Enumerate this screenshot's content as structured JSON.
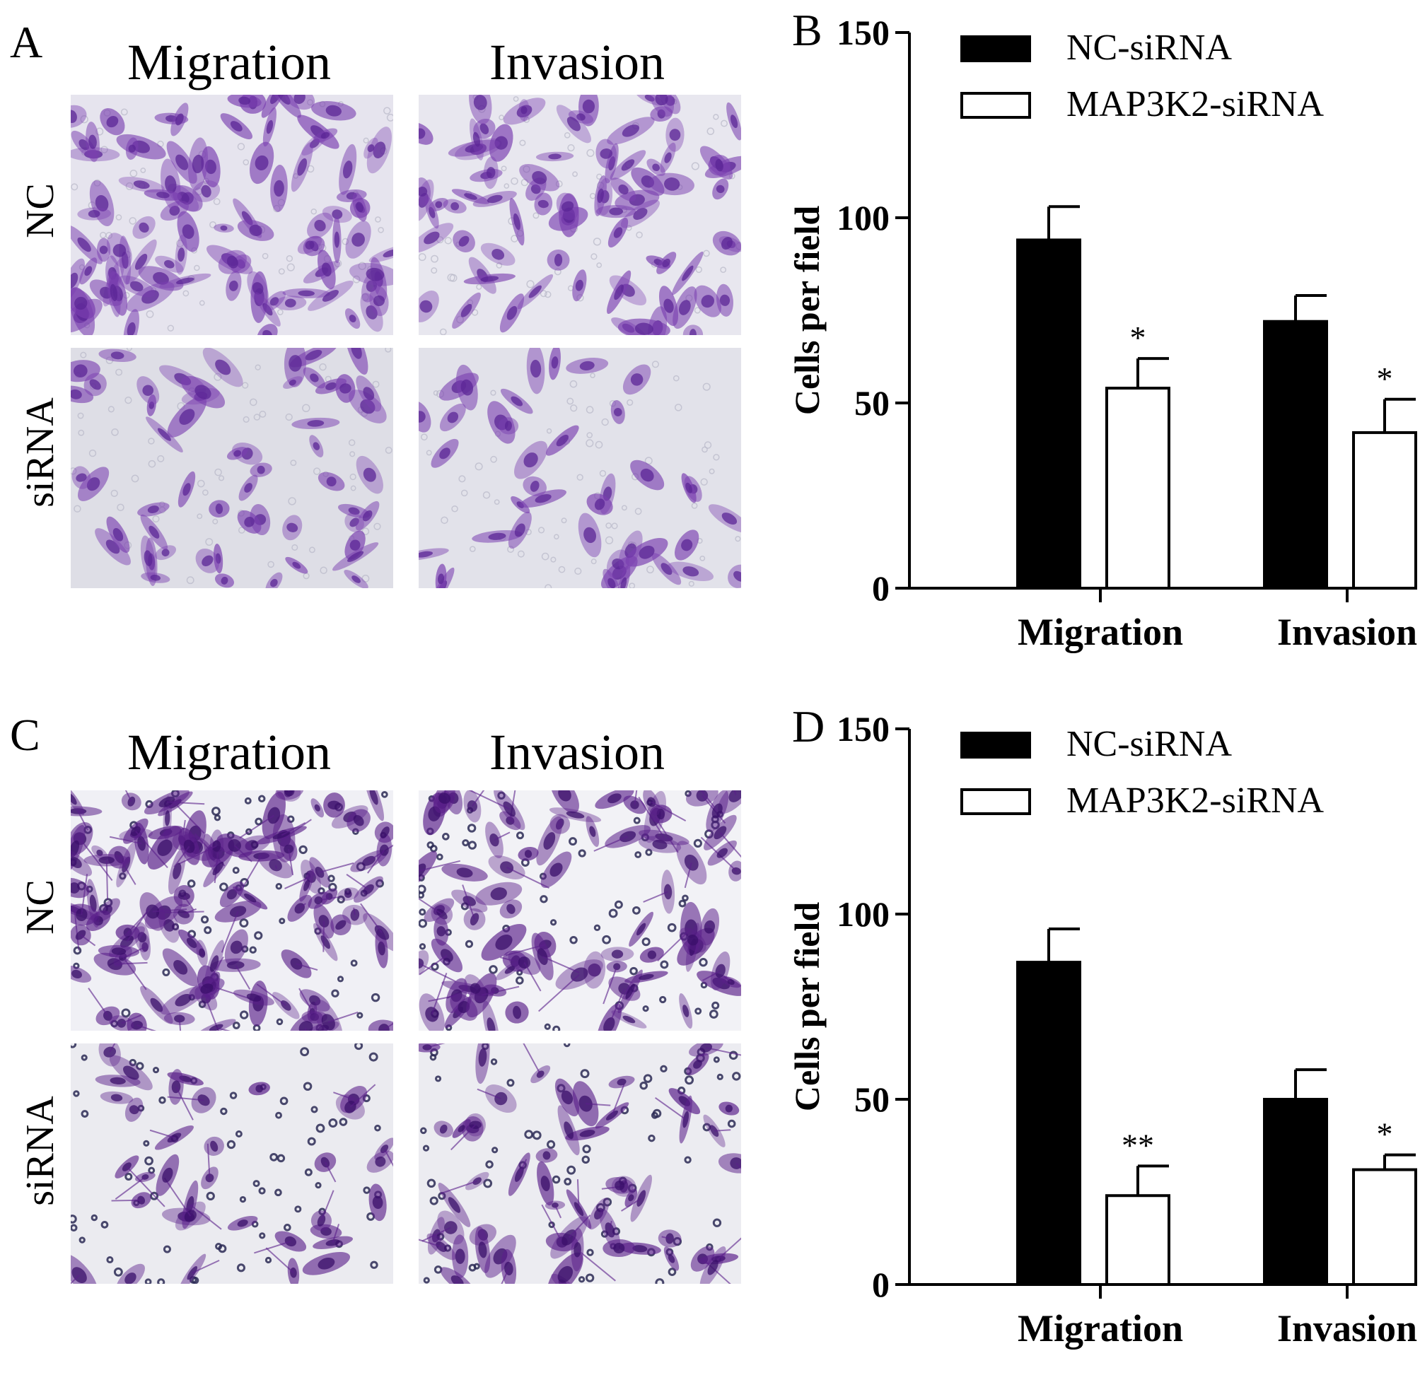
{
  "panels": {
    "A": {
      "letter": "A",
      "columns": [
        "Migration",
        "Invasion"
      ],
      "rows": [
        "NC",
        "siRNA"
      ],
      "stain_color": "#7a3fb0"
    },
    "C": {
      "letter": "C",
      "columns": [
        "Migration",
        "Invasion"
      ],
      "rows": [
        "NC",
        "siRNA"
      ],
      "stain_color": "#5a1f8a"
    }
  },
  "chart_data": [
    {
      "panel": "B",
      "type": "bar",
      "categories": [
        "Migration",
        "Invasion"
      ],
      "series": [
        {
          "name": "NC-siRNA",
          "values": [
            94,
            72
          ],
          "errors": [
            9,
            7
          ],
          "fill": "#000000"
        },
        {
          "name": "MAP3K2-siRNA",
          "values": [
            54,
            42
          ],
          "errors": [
            8,
            9
          ],
          "fill": "#ffffff"
        }
      ],
      "significance": [
        [
          "",
          "*"
        ],
        [
          "",
          "*"
        ]
      ],
      "ylabel": "Cells per field",
      "ylim": [
        0,
        150
      ],
      "yticks": [
        "0",
        "50",
        "100",
        "150"
      ],
      "legend_position": "top-right",
      "grid": false
    },
    {
      "panel": "D",
      "type": "bar",
      "categories": [
        "Migration",
        "Invasion"
      ],
      "series": [
        {
          "name": "NC-siRNA",
          "values": [
            87,
            50
          ],
          "errors": [
            9,
            8
          ],
          "fill": "#000000"
        },
        {
          "name": "MAP3K2-siRNA",
          "values": [
            24,
            31
          ],
          "errors": [
            8,
            4
          ],
          "fill": "#ffffff"
        }
      ],
      "significance": [
        [
          "",
          "**"
        ],
        [
          "",
          "*"
        ]
      ],
      "ylabel": "Cells per field",
      "ylim": [
        0,
        150
      ],
      "yticks": [
        "0",
        "50",
        "100",
        "150"
      ],
      "legend_position": "top-right",
      "grid": false
    }
  ]
}
